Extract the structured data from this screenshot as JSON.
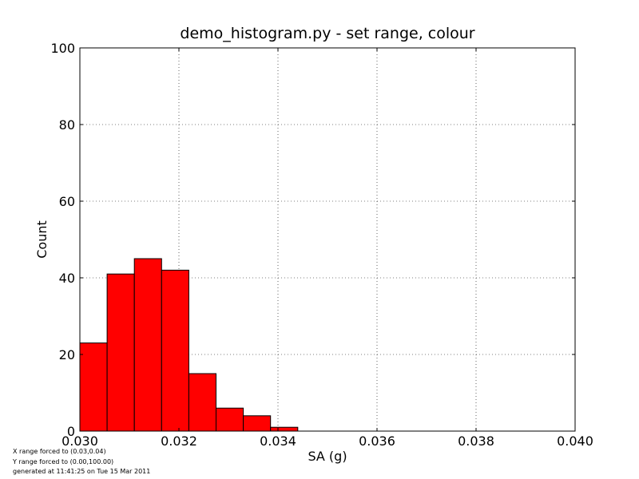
{
  "chart_data": {
    "type": "bar",
    "title": "demo_histogram.py - set range, colour",
    "xlabel": "SA (g)",
    "ylabel": "Count",
    "xlim": [
      0.03,
      0.04
    ],
    "ylim": [
      0,
      100
    ],
    "xticks": [
      "0.030",
      "0.032",
      "0.034",
      "0.036",
      "0.038",
      "0.040"
    ],
    "yticks": [
      "0",
      "20",
      "40",
      "60",
      "80",
      "100"
    ],
    "grid": true,
    "bar_color": "#ff0000",
    "bin_width": 0.00055,
    "bins": [
      {
        "x0": 0.03,
        "x1": 0.03055,
        "count": 23
      },
      {
        "x0": 0.03055,
        "x1": 0.0311,
        "count": 41
      },
      {
        "x0": 0.0311,
        "x1": 0.03165,
        "count": 45
      },
      {
        "x0": 0.03165,
        "x1": 0.0322,
        "count": 42
      },
      {
        "x0": 0.0322,
        "x1": 0.03275,
        "count": 15
      },
      {
        "x0": 0.03275,
        "x1": 0.0333,
        "count": 6
      },
      {
        "x0": 0.0333,
        "x1": 0.03385,
        "count": 4
      },
      {
        "x0": 0.03385,
        "x1": 0.0344,
        "count": 1
      }
    ]
  },
  "notes": {
    "x_range": "X range forced to (0.03,0.04)",
    "y_range": "Y range forced to (0.00,100.00)",
    "generated": "generated at 11:41:25 on Tue 15 Mar 2011"
  }
}
